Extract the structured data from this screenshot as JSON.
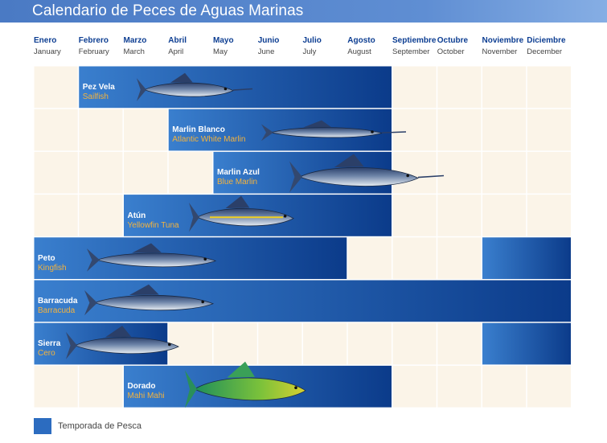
{
  "title": "Calendario de Peces de Aguas Marinas",
  "months": [
    {
      "es": "Enero",
      "en": "January"
    },
    {
      "es": "Febrero",
      "en": "February"
    },
    {
      "es": "Marzo",
      "en": "March"
    },
    {
      "es": "Abril",
      "en": "April"
    },
    {
      "es": "Mayo",
      "en": "May"
    },
    {
      "es": "Junio",
      "en": "June"
    },
    {
      "es": "Julio",
      "en": "July"
    },
    {
      "es": "Agosto",
      "en": "August"
    },
    {
      "es": "Septiembre",
      "en": "September"
    },
    {
      "es": "Octubre",
      "en": "October"
    },
    {
      "es": "Noviembre",
      "en": "November"
    },
    {
      "es": "Diciembre",
      "en": "December"
    }
  ],
  "legend": "Temporada de Pesca",
  "colors": {
    "season_light": "#3579c9",
    "season_dark": "#0c3c8c",
    "cell": "#fbf4e8",
    "grid_line": "#ffffff",
    "es_label": "#ffffff",
    "en_label": "#f4b33d"
  },
  "chart_data": {
    "type": "gantt",
    "categories": [
      "Enero",
      "Febrero",
      "Marzo",
      "Abril",
      "Mayo",
      "Junio",
      "Julio",
      "Agosto",
      "Septiembre",
      "Octubre",
      "Noviembre",
      "Diciembre"
    ],
    "series": [
      {
        "name": "Pez Vela",
        "name_en": "Sailfish",
        "season": [
          [
            2,
            8
          ]
        ]
      },
      {
        "name": "Marlin Blanco",
        "name_en": "Atlantic White Marlin",
        "season": [
          [
            4,
            8
          ]
        ]
      },
      {
        "name": "Marlin Azul",
        "name_en": "Blue Marlin",
        "season": [
          [
            5,
            8
          ]
        ]
      },
      {
        "name": "Atún",
        "name_en": "Yellowfin Tuna",
        "season": [
          [
            3,
            8
          ]
        ]
      },
      {
        "name": "Peto",
        "name_en": "Kingfish",
        "season": [
          [
            1,
            7
          ],
          [
            11,
            12
          ]
        ]
      },
      {
        "name": "Barracuda",
        "name_en": "Barracuda",
        "season": [
          [
            1,
            12
          ]
        ]
      },
      {
        "name": "Sierra",
        "name_en": "Cero",
        "season": [
          [
            1,
            3
          ],
          [
            11,
            12
          ]
        ]
      },
      {
        "name": "Dorado",
        "name_en": "Mahi Mahi",
        "season": [
          [
            3,
            8
          ]
        ]
      }
    ]
  }
}
